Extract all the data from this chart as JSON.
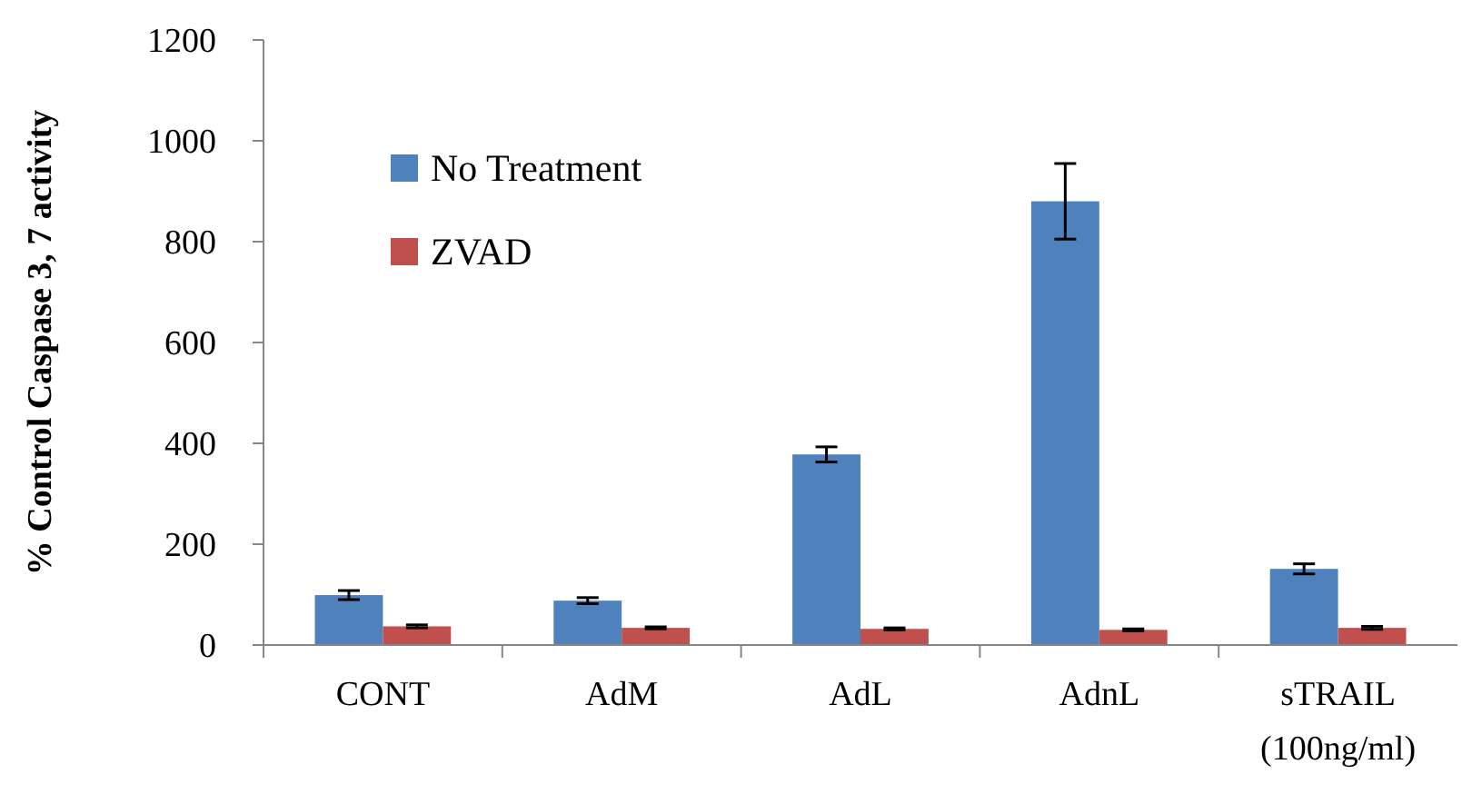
{
  "chart_data": {
    "type": "bar",
    "ylabel": "% Control Caspase 3, 7 activity",
    "categories": [
      "CONT",
      "AdM",
      "AdL",
      "AdnL",
      "sTRAIL\n(100ng/ml)"
    ],
    "series": [
      {
        "name": "No Treatment",
        "color": "#4f81bd",
        "values": [
          99,
          88,
          378,
          880,
          151
        ],
        "errors": [
          9,
          6,
          15,
          75,
          10
        ]
      },
      {
        "name": "ZVAD",
        "color": "#c0504d",
        "values": [
          37,
          34,
          32,
          30,
          34
        ],
        "errors": [
          3,
          2,
          2,
          2,
          3
        ]
      }
    ],
    "ylim": [
      0,
      1200
    ],
    "yticks": [
      0,
      200,
      400,
      600,
      800,
      1000,
      1200
    ],
    "grid": false,
    "legend": "top left"
  }
}
